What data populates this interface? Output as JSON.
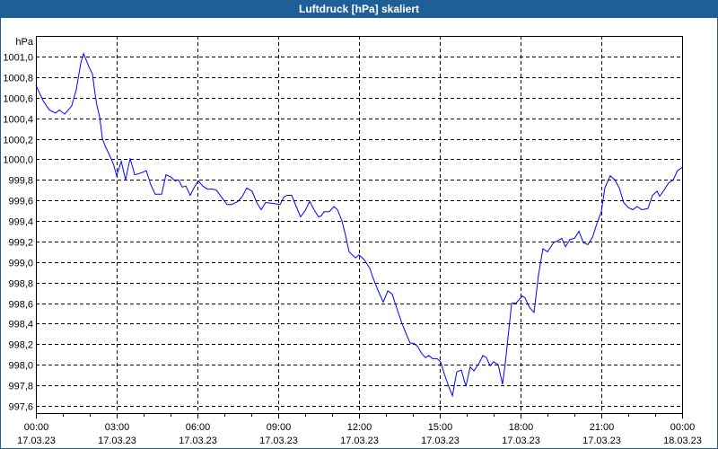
{
  "window": {
    "title": "Luftdruck [hPa] skaliert"
  },
  "chart_data": {
    "type": "line",
    "title": "Luftdruck [hPa] skaliert",
    "ylabel": "hPa",
    "xlabel": "",
    "ylim": [
      997.6,
      1001.0
    ],
    "y_ticks": [
      "997,6",
      "997,8",
      "998,0",
      "998,2",
      "998,4",
      "998,6",
      "998,8",
      "999,0",
      "999,2",
      "999,4",
      "999,6",
      "999,8",
      "1000,0",
      "1000,2",
      "1000,4",
      "1000,6",
      "1000,8",
      "1001,0"
    ],
    "y_tick_values": [
      997.6,
      997.8,
      998.0,
      998.2,
      998.4,
      998.6,
      998.8,
      999.0,
      999.2,
      999.4,
      999.6,
      999.8,
      1000.0,
      1000.2,
      1000.4,
      1000.6,
      1000.8,
      1001.0
    ],
    "xlim_hours": [
      0,
      24
    ],
    "x_ticks": [
      {
        "hour": 0,
        "time": "00:00",
        "date": "17.03.23"
      },
      {
        "hour": 3,
        "time": "03:00",
        "date": "17.03.23"
      },
      {
        "hour": 6,
        "time": "06:00",
        "date": "17.03.23"
      },
      {
        "hour": 9,
        "time": "09:00",
        "date": "17.03.23"
      },
      {
        "hour": 12,
        "time": "12:00",
        "date": "17.03.23"
      },
      {
        "hour": 15,
        "time": "15:00",
        "date": "17.03.23"
      },
      {
        "hour": 18,
        "time": "18:00",
        "date": "17.03.23"
      },
      {
        "hour": 21,
        "time": "21:00",
        "date": "17.03.23"
      },
      {
        "hour": 24,
        "time": "00:00",
        "date": "18.03.23"
      }
    ],
    "grid": true,
    "line_color": "#0000ff",
    "series": [
      {
        "name": "Luftdruck",
        "points": [
          [
            0,
            1000.72
          ],
          [
            0.27,
            1000.57
          ],
          [
            0.5,
            1000.48
          ],
          [
            0.73,
            1000.45
          ],
          [
            0.87,
            1000.48
          ],
          [
            1.07,
            1000.44
          ],
          [
            1.33,
            1000.52
          ],
          [
            1.5,
            1000.68
          ],
          [
            1.67,
            1000.94
          ],
          [
            1.77,
            1001.03
          ],
          [
            1.97,
            1000.9
          ],
          [
            2.1,
            1000.83
          ],
          [
            2.2,
            1000.63
          ],
          [
            2.27,
            1000.52
          ],
          [
            2.37,
            1000.41
          ],
          [
            2.47,
            1000.2
          ],
          [
            2.57,
            1000.13
          ],
          [
            2.7,
            1000.06
          ],
          [
            2.87,
            999.96
          ],
          [
            3.0,
            999.84
          ],
          [
            3.17,
            999.98
          ],
          [
            3.33,
            999.8
          ],
          [
            3.5,
            1000.01
          ],
          [
            3.67,
            999.85
          ],
          [
            3.93,
            999.87
          ],
          [
            4.1,
            999.89
          ],
          [
            4.27,
            999.75
          ],
          [
            4.43,
            999.66
          ],
          [
            4.67,
            999.66
          ],
          [
            4.83,
            999.85
          ],
          [
            5.0,
            999.83
          ],
          [
            5.17,
            999.79
          ],
          [
            5.3,
            999.8
          ],
          [
            5.43,
            999.73
          ],
          [
            5.57,
            999.74
          ],
          [
            5.73,
            999.65
          ],
          [
            5.87,
            999.72
          ],
          [
            6.03,
            999.79
          ],
          [
            6.2,
            999.74
          ],
          [
            6.37,
            999.71
          ],
          [
            6.57,
            999.71
          ],
          [
            6.7,
            999.7
          ],
          [
            6.87,
            999.64
          ],
          [
            7.1,
            999.56
          ],
          [
            7.27,
            999.56
          ],
          [
            7.5,
            999.59
          ],
          [
            7.67,
            999.64
          ],
          [
            7.83,
            999.72
          ],
          [
            8.03,
            999.69
          ],
          [
            8.2,
            999.58
          ],
          [
            8.37,
            999.51
          ],
          [
            8.53,
            999.58
          ],
          [
            8.83,
            999.57
          ],
          [
            9.07,
            999.56
          ],
          [
            9.2,
            999.63
          ],
          [
            9.33,
            999.65
          ],
          [
            9.5,
            999.65
          ],
          [
            9.67,
            999.54
          ],
          [
            9.83,
            999.44
          ],
          [
            10.0,
            999.5
          ],
          [
            10.17,
            999.59
          ],
          [
            10.33,
            999.51
          ],
          [
            10.5,
            999.44
          ],
          [
            10.6,
            999.45
          ],
          [
            10.7,
            999.49
          ],
          [
            10.9,
            999.49
          ],
          [
            11.07,
            999.54
          ],
          [
            11.2,
            999.51
          ],
          [
            11.37,
            999.4
          ],
          [
            11.5,
            999.26
          ],
          [
            11.63,
            999.1
          ],
          [
            11.87,
            999.04
          ],
          [
            12.0,
            999.07
          ],
          [
            12.2,
            999.02
          ],
          [
            12.4,
            998.94
          ],
          [
            12.53,
            998.84
          ],
          [
            12.73,
            998.71
          ],
          [
            12.9,
            998.61
          ],
          [
            13.07,
            998.72
          ],
          [
            13.23,
            998.69
          ],
          [
            13.43,
            998.53
          ],
          [
            13.6,
            998.4
          ],
          [
            13.77,
            998.29
          ],
          [
            13.9,
            998.21
          ],
          [
            14.03,
            998.21
          ],
          [
            14.17,
            998.18
          ],
          [
            14.33,
            998.11
          ],
          [
            14.47,
            998.07
          ],
          [
            14.6,
            998.09
          ],
          [
            14.73,
            998.06
          ],
          [
            14.9,
            998.06
          ],
          [
            15.03,
            998.03
          ],
          [
            15.17,
            997.91
          ],
          [
            15.33,
            997.79
          ],
          [
            15.47,
            997.7
          ],
          [
            15.63,
            997.93
          ],
          [
            15.8,
            997.95
          ],
          [
            15.97,
            997.79
          ],
          [
            16.13,
            997.98
          ],
          [
            16.27,
            997.94
          ],
          [
            16.47,
            998.02
          ],
          [
            16.6,
            998.09
          ],
          [
            16.73,
            998.07
          ],
          [
            16.87,
            997.99
          ],
          [
            17.0,
            998.03
          ],
          [
            17.17,
            998.0
          ],
          [
            17.33,
            997.81
          ],
          [
            17.43,
            998.01
          ],
          [
            17.67,
            998.6
          ],
          [
            17.83,
            998.6
          ],
          [
            18.07,
            998.67
          ],
          [
            18.17,
            998.65
          ],
          [
            18.33,
            998.56
          ],
          [
            18.5,
            998.51
          ],
          [
            18.67,
            998.88
          ],
          [
            18.83,
            999.13
          ],
          [
            19.0,
            999.1
          ],
          [
            19.23,
            999.19
          ],
          [
            19.4,
            999.21
          ],
          [
            19.53,
            999.23
          ],
          [
            19.67,
            999.15
          ],
          [
            19.83,
            999.22
          ],
          [
            20.0,
            999.23
          ],
          [
            20.17,
            999.3
          ],
          [
            20.33,
            999.19
          ],
          [
            20.5,
            999.17
          ],
          [
            20.67,
            999.24
          ],
          [
            20.83,
            999.37
          ],
          [
            21.0,
            999.49
          ],
          [
            21.13,
            999.72
          ],
          [
            21.33,
            999.84
          ],
          [
            21.5,
            999.8
          ],
          [
            21.67,
            999.72
          ],
          [
            21.83,
            999.58
          ],
          [
            22.0,
            999.53
          ],
          [
            22.17,
            999.51
          ],
          [
            22.33,
            999.54
          ],
          [
            22.5,
            999.51
          ],
          [
            22.73,
            999.52
          ],
          [
            22.9,
            999.65
          ],
          [
            23.07,
            999.69
          ],
          [
            23.17,
            999.64
          ],
          [
            23.33,
            999.7
          ],
          [
            23.5,
            999.77
          ],
          [
            23.67,
            999.8
          ],
          [
            23.83,
            999.89
          ],
          [
            24.0,
            999.92
          ]
        ]
      }
    ]
  }
}
